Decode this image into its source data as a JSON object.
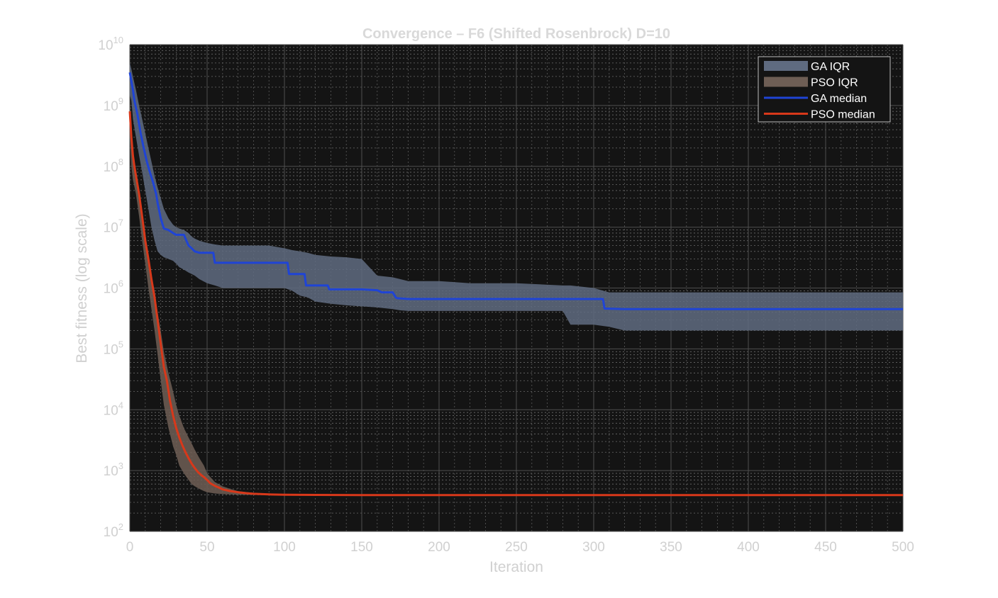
{
  "chart_data": {
    "type": "line",
    "title": "Convergence – F6 (Shifted Rosenbrock)  D=10",
    "xlabel": "Iteration",
    "ylabel": "Best fitness (log scale)",
    "xlim": [
      0,
      500
    ],
    "ylim": [
      100,
      10000000000
    ],
    "yscale": "log",
    "grid": true,
    "legend_position": "top-right",
    "background_color": "#141414",
    "x_ticks": [
      "0",
      "50",
      "100",
      "150",
      "200",
      "250",
      "300",
      "350",
      "400",
      "450",
      "500"
    ],
    "y_ticks": [
      {
        "base": "10",
        "exp": "2"
      },
      {
        "base": "10",
        "exp": "3"
      },
      {
        "base": "10",
        "exp": "4"
      },
      {
        "base": "10",
        "exp": "5"
      },
      {
        "base": "10",
        "exp": "6"
      },
      {
        "base": "10",
        "exp": "7"
      },
      {
        "base": "10",
        "exp": "8"
      },
      {
        "base": "10",
        "exp": "9"
      },
      {
        "base": "10",
        "exp": "10"
      }
    ],
    "series": [
      {
        "name": "GA IQR",
        "kind": "band",
        "color": "#5f6b80",
        "x": [
          0,
          1,
          2,
          4,
          6,
          8,
          10,
          12,
          14,
          16,
          18,
          20,
          22,
          25,
          28,
          30,
          32,
          35,
          38,
          40,
          42,
          45,
          50,
          55,
          60,
          70,
          80,
          90,
          100,
          105,
          110,
          115,
          120,
          130,
          140,
          150,
          160,
          170,
          175,
          180,
          200,
          220,
          250,
          280,
          285,
          300,
          310,
          320,
          350,
          400,
          450,
          500
        ],
        "lower": [
          1500000000,
          1200000000,
          600000000,
          300000000,
          150000000,
          80000000,
          40000000,
          20000000,
          10000000,
          6000000,
          4000000,
          3500000,
          3200000,
          3000000,
          2800000,
          2500000,
          2200000,
          2000000,
          1800000,
          1700000,
          1600000,
          1400000,
          1200000,
          1100000,
          1000000,
          1000000,
          1000000,
          1000000,
          1000000,
          900000,
          750000,
          700000,
          600000,
          550000,
          520000,
          500000,
          480000,
          450000,
          430000,
          420000,
          420000,
          420000,
          420000,
          420000,
          250000,
          250000,
          230000,
          200000,
          200000,
          200000,
          200000,
          200000
        ],
        "upper": [
          5000000000,
          4000000000,
          3000000000,
          1800000000,
          1000000000,
          600000000,
          350000000,
          200000000,
          120000000,
          70000000,
          45000000,
          30000000,
          20000000,
          14000000,
          11000000,
          10000000,
          9500000,
          9000000,
          8000000,
          7000000,
          6500000,
          6000000,
          5500000,
          5200000,
          5000000,
          5000000,
          5000000,
          5000000,
          4500000,
          4200000,
          4000000,
          3800000,
          3500000,
          3300000,
          3200000,
          3000000,
          1600000,
          1500000,
          1400000,
          1300000,
          1300000,
          1200000,
          1200000,
          1100000,
          1100000,
          1000000,
          850000,
          850000,
          850000,
          850000,
          850000,
          850000
        ]
      },
      {
        "name": "PSO IQR",
        "kind": "band",
        "color": "#6e5e55",
        "x": [
          0,
          1,
          2,
          4,
          6,
          8,
          10,
          12,
          14,
          16,
          18,
          20,
          22,
          25,
          28,
          30,
          32,
          35,
          38,
          40,
          42,
          45,
          48,
          50,
          55,
          60,
          65,
          70,
          80,
          90,
          100,
          120,
          150,
          200,
          300,
          400,
          500
        ],
        "lower": [
          400000000,
          100000000,
          60000000,
          35000000,
          15000000,
          6000000,
          2500000,
          1000000,
          450000,
          200000,
          80000,
          30000,
          12000,
          5000,
          2500,
          1800,
          1200,
          900,
          700,
          600,
          550,
          500,
          460,
          440,
          420,
          410,
          405,
          400,
          398,
          396,
          395,
          394,
          393,
          392,
          392,
          392,
          392
        ],
        "upper": [
          1500000000,
          300000000,
          150000000,
          80000000,
          40000000,
          18000000,
          8000000,
          3500000,
          1600000,
          900000,
          400000,
          200000,
          90000,
          40000,
          20000,
          12000,
          8000,
          5000,
          3500,
          2800,
          2200,
          1600,
          1200,
          900,
          650,
          550,
          500,
          460,
          430,
          415,
          405,
          400,
          398,
          396,
          396,
          396,
          396
        ]
      },
      {
        "name": "GA median",
        "kind": "line",
        "color": "#1f44d6",
        "x": [
          0,
          1,
          2,
          3,
          5,
          7,
          9,
          11,
          13,
          15,
          17,
          18,
          20,
          22,
          25,
          28,
          30,
          32,
          35,
          36,
          38,
          40,
          42,
          45,
          50,
          54,
          55,
          60,
          70,
          80,
          90,
          100,
          102,
          103,
          110,
          113,
          114,
          120,
          128,
          129,
          150,
          160,
          163,
          165,
          170,
          172,
          173,
          180,
          200,
          250,
          300,
          306,
          307,
          320,
          350,
          400,
          450,
          500
        ],
        "y": [
          3500000000,
          2500000000,
          1800000000,
          1200000000,
          700000000,
          350000000,
          200000000,
          120000000,
          80000000,
          55000000,
          35000000,
          25000000,
          14000000,
          9500000,
          9000000,
          8000000,
          7500000,
          7500000,
          7500000,
          6500000,
          5000000,
          4500000,
          4000000,
          3800000,
          3800000,
          3800000,
          2600000,
          2600000,
          2600000,
          2600000,
          2600000,
          2600000,
          2600000,
          1700000,
          1700000,
          1700000,
          1100000,
          1100000,
          1100000,
          950000,
          950000,
          920000,
          850000,
          850000,
          850000,
          700000,
          680000,
          660000,
          660000,
          660000,
          660000,
          660000,
          460000,
          450000,
          450000,
          450000,
          450000,
          450000
        ]
      },
      {
        "name": "PSO median",
        "kind": "line",
        "color": "#d8381a",
        "x": [
          0,
          1,
          2,
          3,
          4,
          6,
          8,
          10,
          12,
          14,
          16,
          18,
          20,
          22,
          24,
          26,
          28,
          30,
          32,
          34,
          36,
          38,
          40,
          42,
          44,
          46,
          48,
          50,
          52,
          55,
          58,
          60,
          65,
          70,
          75,
          80,
          90,
          100,
          120,
          150,
          200,
          300,
          400,
          500
        ],
        "y": [
          800000000,
          300000000,
          150000000,
          100000000,
          70000000,
          35000000,
          15000000,
          6000000,
          3000000,
          1400000,
          700000,
          300000,
          120000,
          50000,
          30000,
          14000,
          8000,
          5000,
          3500,
          2600,
          2000,
          1600,
          1300,
          1100,
          950,
          850,
          780,
          700,
          620,
          560,
          520,
          490,
          460,
          440,
          425,
          415,
          405,
          400,
          398,
          396,
          395,
          395,
          395,
          395
        ]
      }
    ]
  }
}
